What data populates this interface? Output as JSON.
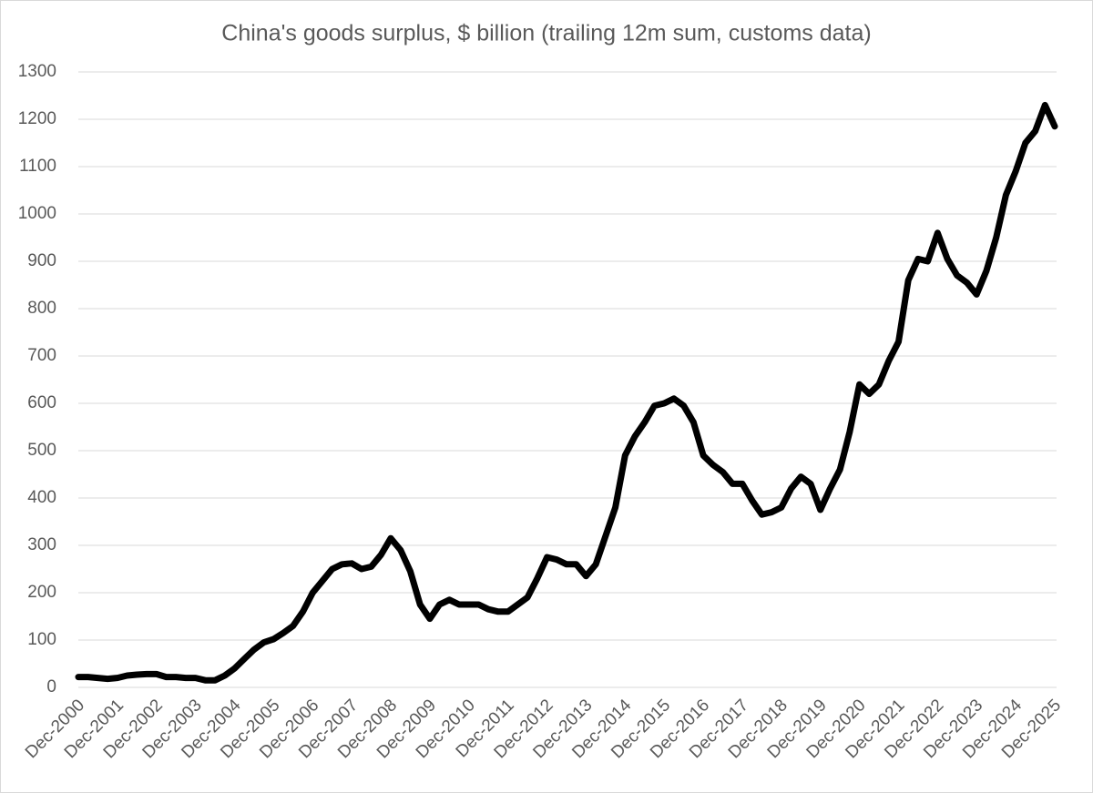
{
  "chart_data": {
    "type": "line",
    "title": "China's goods surplus, $ billion (trailing 12m sum, customs data)",
    "categories": [
      "Dec-2000",
      null,
      null,
      null,
      "Dec-2001",
      null,
      null,
      null,
      "Dec-2002",
      null,
      null,
      null,
      "Dec-2003",
      null,
      null,
      null,
      "Dec-2004",
      null,
      null,
      null,
      "Dec-2005",
      null,
      null,
      null,
      "Dec-2006",
      null,
      null,
      null,
      "Dec-2007",
      null,
      null,
      null,
      "Dec-2008",
      null,
      null,
      null,
      "Dec-2009",
      null,
      null,
      null,
      "Dec-2010",
      null,
      null,
      null,
      "Dec-2011",
      null,
      null,
      null,
      "Dec-2012",
      null,
      null,
      null,
      "Dec-2013",
      null,
      null,
      null,
      "Dec-2014",
      null,
      null,
      null,
      "Dec-2015",
      null,
      null,
      null,
      "Dec-2016",
      null,
      null,
      null,
      "Dec-2017",
      null,
      null,
      null,
      "Dec-2018",
      null,
      null,
      null,
      "Dec-2019",
      null,
      null,
      null,
      "Dec-2020",
      null,
      null,
      null,
      "Dec-2021",
      null,
      null,
      null,
      "Dec-2022",
      null,
      null,
      null,
      "Dec-2023",
      null,
      null,
      null,
      "Dec-2024",
      null,
      null,
      null,
      "Dec-2025"
    ],
    "series": [
      {
        "name": "China's goods surplus",
        "color": "#000000",
        "values": [
          22,
          22,
          20,
          18,
          20,
          25,
          27,
          28,
          28,
          22,
          22,
          20,
          20,
          15,
          15,
          25,
          40,
          60,
          80,
          95,
          102,
          115,
          130,
          160,
          200,
          225,
          250,
          260,
          262,
          250,
          255,
          280,
          315,
          290,
          245,
          175,
          145,
          175,
          185,
          175,
          175,
          175,
          165,
          160,
          160,
          175,
          190,
          230,
          275,
          270,
          260,
          260,
          235,
          260,
          320,
          380,
          490,
          530,
          560,
          595,
          600,
          610,
          595,
          560,
          490,
          470,
          455,
          430,
          430,
          395,
          365,
          370,
          380,
          420,
          445,
          430,
          375,
          420,
          460,
          540,
          640,
          620,
          640,
          690,
          730,
          860,
          905,
          900,
          960,
          905,
          870,
          855,
          830,
          880,
          950,
          1040,
          1090,
          1150,
          1175,
          1230,
          1185
        ]
      }
    ],
    "ylim": [
      0,
      1300
    ],
    "yticks": [
      0,
      100,
      200,
      300,
      400,
      500,
      600,
      700,
      800,
      900,
      1000,
      1100,
      1200,
      1300
    ],
    "grid": true
  }
}
